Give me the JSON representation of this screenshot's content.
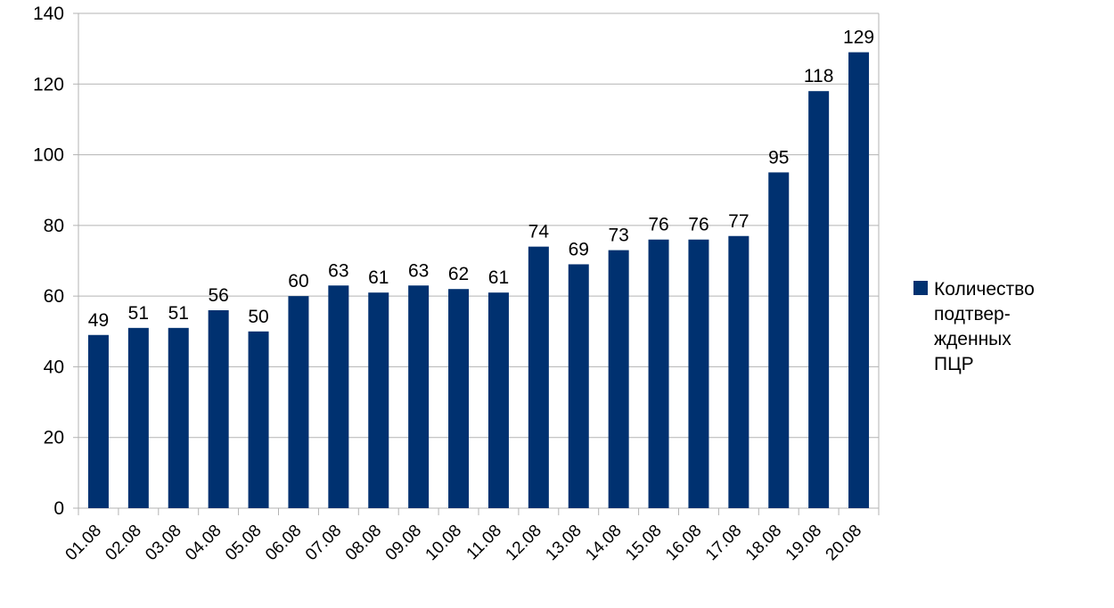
{
  "chart_data": {
    "type": "bar",
    "categories": [
      "01.08",
      "02.08",
      "03.08",
      "04.08",
      "05.08",
      "06.08",
      "07.08",
      "08.08",
      "09.08",
      "10.08",
      "11.08",
      "12.08",
      "13.08",
      "14.08",
      "15.08",
      "16.08",
      "17.08",
      "18.08",
      "19.08",
      "20.08"
    ],
    "series": [
      {
        "name": "Количество подтвер-жденных ПЦР",
        "name_lines": [
          "Количество",
          "подтвер-",
          "жденных",
          "ПЦР"
        ],
        "values": [
          49,
          51,
          51,
          56,
          50,
          60,
          63,
          61,
          63,
          62,
          61,
          74,
          69,
          73,
          76,
          76,
          77,
          95,
          118,
          129
        ],
        "color": "#003170"
      }
    ],
    "title": "",
    "xlabel": "",
    "ylabel": "",
    "ylim": [
      0,
      140
    ],
    "yticks": [
      0,
      20,
      40,
      60,
      80,
      100,
      120,
      140
    ],
    "grid": true,
    "data_labels": true,
    "legend_position": "right"
  }
}
